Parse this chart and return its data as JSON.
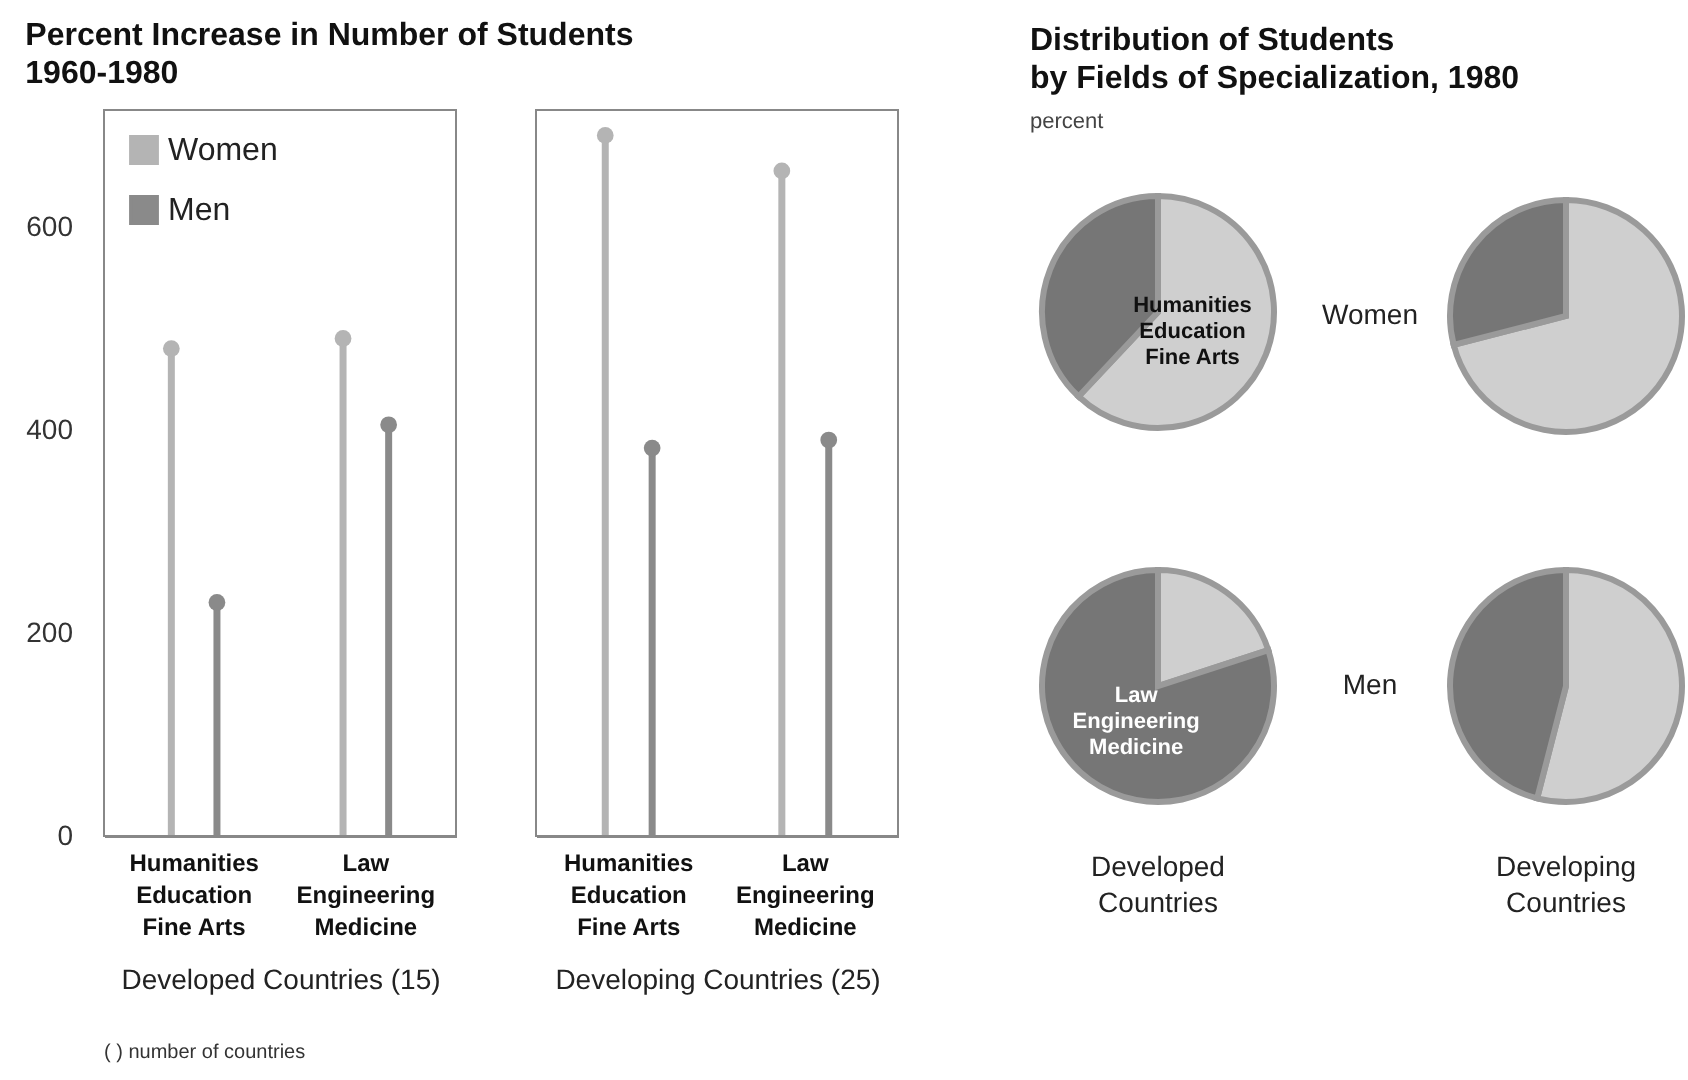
{
  "chart_data": [
    {
      "type": "lollipop",
      "title": "Percent Increase in Number of Students\n1960-1980",
      "xlabel": "Developed Countries (15)",
      "categories": [
        "Humanities\nEducation\nFine Arts",
        "Law\nEngineering\nMedicine"
      ],
      "series": [
        {
          "name": "Women",
          "color": "#b4b4b4",
          "values": [
            480,
            490
          ]
        },
        {
          "name": "Men",
          "color": "#8a8a8a",
          "values": [
            230,
            405
          ]
        }
      ],
      "ylim": [
        0,
        715
      ],
      "yticks": [
        0,
        200,
        400,
        600
      ],
      "legend": "top left",
      "marker": "circle",
      "annotations": [
        "(   ) number of countries"
      ]
    },
    {
      "type": "lollipop",
      "xlabel": "Developing Countries (25)",
      "categories": [
        "Humanities\nEducation\nFine Arts",
        "Law\nEngineering\nMedicine"
      ],
      "series": [
        {
          "color": "#b4b4b4",
          "values": [
            690,
            655
          ]
        },
        {
          "color": "#8a8a8a",
          "values": [
            382,
            390
          ]
        }
      ],
      "ylim": [
        0,
        715
      ],
      "yticks": [
        0,
        200,
        400,
        600
      ],
      "tick_labels": "x",
      "marker": "circle"
    },
    {
      "type": "pie",
      "title": "Distribution of Students\nby Fields of Specialization, 1980",
      "subtitle": "percent",
      "categories": [
        "Humanities\nEducation\nFine Arts",
        null
      ],
      "values": [
        62,
        38
      ],
      "colors": [
        "#cfcfcf",
        "#767676"
      ]
    },
    {
      "type": "pie",
      "categories": [
        null,
        null
      ],
      "values": [
        71,
        29
      ],
      "colors": [
        "#cfcfcf",
        "#767676"
      ],
      "annotations": [
        "Women"
      ]
    },
    {
      "type": "pie",
      "xlabel": "Developed\nCountries",
      "categories": [
        null,
        "Law\nEngineering\nMedicine"
      ],
      "values": [
        20,
        80
      ],
      "colors": [
        "#cfcfcf",
        "#767676"
      ]
    },
    {
      "type": "pie",
      "xlabel": "Developing\nCountries",
      "categories": [
        null,
        null
      ],
      "values": [
        54,
        46
      ],
      "colors": [
        "#cfcfcf",
        "#767676"
      ],
      "annotations": [
        "Men"
      ]
    }
  ]
}
